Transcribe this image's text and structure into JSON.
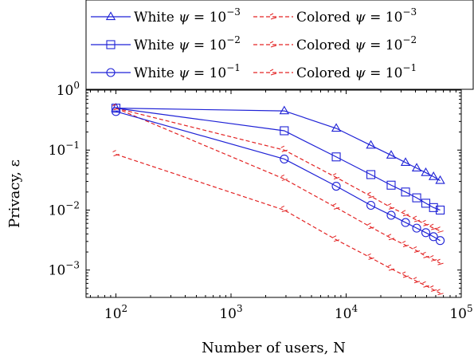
{
  "chart_data": {
    "type": "line",
    "xlabel": "Number of users, N",
    "ylabel": "Privacy, ε",
    "xscale": "log",
    "yscale": "log",
    "xlim": [
      55,
      100000
    ],
    "ylim": [
      0.00035,
      1.0
    ],
    "grid": false,
    "legend_position": "top",
    "x_ticks": [
      {
        "value": 100,
        "base": "10",
        "exp": "2"
      },
      {
        "value": 1000,
        "base": "10",
        "exp": "3"
      },
      {
        "value": 10000,
        "base": "10",
        "exp": "4"
      },
      {
        "value": 100000,
        "base": "10",
        "exp": "5"
      }
    ],
    "y_ticks": [
      {
        "value": 1,
        "base": "10",
        "exp": "0"
      },
      {
        "value": 0.1,
        "base": "10",
        "exp": "−1"
      },
      {
        "value": 0.01,
        "base": "10",
        "exp": "−2"
      },
      {
        "value": 0.001,
        "base": "10",
        "exp": "−3"
      }
    ],
    "series": [
      {
        "name": "White ψ = 10^-3",
        "legend_text": "White",
        "psi_exp": "−3",
        "color": "#1f22d6",
        "style": "solid",
        "marker": "triangle",
        "x": [
          100,
          2900,
          8200,
          16400,
          24600,
          32800,
          41000,
          49200,
          57400,
          65600
        ],
        "y": [
          0.5,
          0.45,
          0.23,
          0.12,
          0.082,
          0.062,
          0.05,
          0.042,
          0.036,
          0.031
        ]
      },
      {
        "name": "Colored ψ = 10^-3",
        "legend_text": "Colored",
        "psi_exp": "−3",
        "color": "#e32424",
        "style": "dashed",
        "marker": "triangle",
        "x": [
          100,
          2900,
          8200,
          16400,
          24600,
          32800,
          41000,
          49200,
          57400,
          65600
        ],
        "y": [
          0.5,
          0.1,
          0.035,
          0.017,
          0.011,
          0.0085,
          0.0068,
          0.0058,
          0.005,
          0.0045
        ]
      },
      {
        "name": "White ψ = 10^-2",
        "legend_text": "White",
        "psi_exp": "−2",
        "color": "#1f22d6",
        "style": "solid",
        "marker": "square",
        "x": [
          100,
          2900,
          8200,
          16400,
          24600,
          32800,
          41000,
          49200,
          57400,
          65600
        ],
        "y": [
          0.5,
          0.21,
          0.077,
          0.039,
          0.026,
          0.02,
          0.016,
          0.013,
          0.011,
          0.01
        ]
      },
      {
        "name": "Colored ψ = 10^-2",
        "legend_text": "Colored",
        "psi_exp": "−2",
        "color": "#e32424",
        "style": "dashed",
        "marker": "square",
        "x": [
          100,
          2900,
          8200,
          16400,
          24600,
          32800,
          41000,
          49200,
          57400,
          65600
        ],
        "y": [
          0.5,
          0.033,
          0.011,
          0.0052,
          0.0034,
          0.0026,
          0.0021,
          0.0017,
          0.0015,
          0.0013
        ]
      },
      {
        "name": "White ψ = 10^-1",
        "legend_text": "White",
        "psi_exp": "−1",
        "color": "#1f22d6",
        "style": "solid",
        "marker": "circle",
        "x": [
          100,
          2900,
          8200,
          16400,
          24600,
          32800,
          41000,
          49200,
          57400,
          65600
        ],
        "y": [
          0.44,
          0.071,
          0.025,
          0.012,
          0.0082,
          0.0062,
          0.005,
          0.0042,
          0.0036,
          0.0031
        ]
      },
      {
        "name": "Colored ψ = 10^-1",
        "legend_text": "Colored",
        "psi_exp": "−1",
        "color": "#e32424",
        "style": "dashed",
        "marker": "circle",
        "x": [
          100,
          2900,
          8200,
          16400,
          24600,
          32800,
          41000,
          49200,
          57400,
          65600
        ],
        "y": [
          0.085,
          0.01,
          0.0032,
          0.0016,
          0.00105,
          0.0008,
          0.00065,
          0.00055,
          0.00047,
          0.00041
        ]
      }
    ]
  }
}
